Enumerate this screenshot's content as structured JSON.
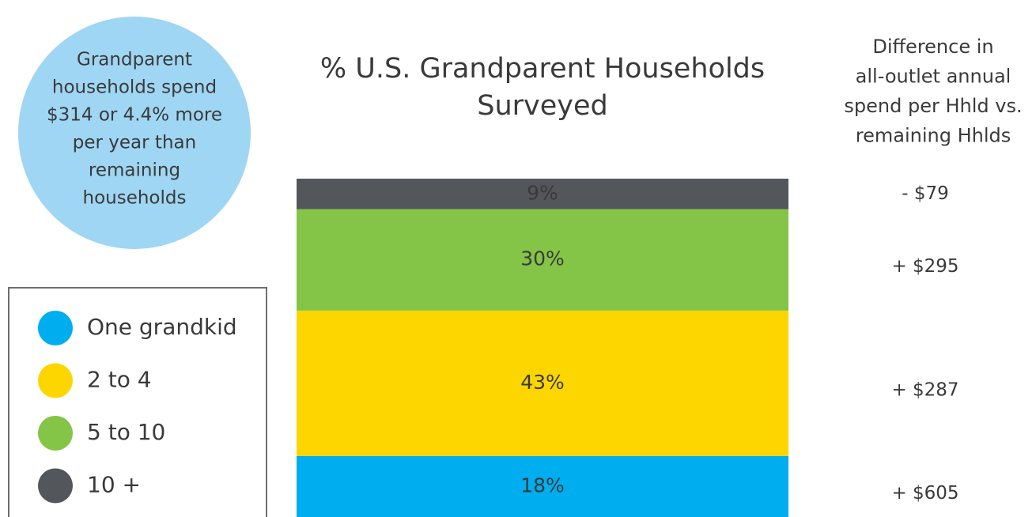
{
  "chart_data": {
    "type": "stacked-bar",
    "title": [
      "% U.S. Grandparent Households",
      "Surveyed"
    ],
    "callout": [
      "Grandparent",
      "households spend",
      "$314 or 4.4% more",
      "per year than",
      "remaining",
      "households"
    ],
    "difference_header": [
      "Difference in",
      "all-outlet annual",
      "spend per Hhld vs.",
      "remaining Hhlds"
    ],
    "ylim": [
      0,
      100
    ],
    "series": [
      {
        "name": "One grandkid",
        "color": "#00aeef",
        "values": [
          18
        ],
        "value_labels": [
          "18%"
        ],
        "difference": "+ $605"
      },
      {
        "name": "2 to 4",
        "color": "#fdd600",
        "values": [
          43
        ],
        "value_labels": [
          "43%"
        ],
        "difference": "+ $287"
      },
      {
        "name": "5 to 10",
        "color": "#84c446",
        "values": [
          30
        ],
        "value_labels": [
          "30%"
        ],
        "difference": "+ $295"
      },
      {
        "name": "10 +",
        "color": "#53565a",
        "values": [
          9
        ],
        "value_labels": [
          "9%"
        ],
        "difference": "- $79"
      }
    ]
  }
}
